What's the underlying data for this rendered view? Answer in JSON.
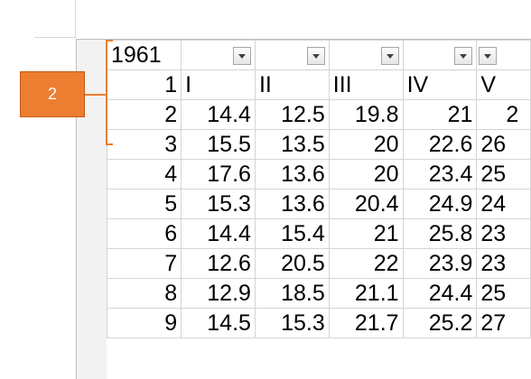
{
  "colors": {
    "accent": "#ed7d31",
    "gridline": "#d4d4d4",
    "header_shade": "#f2f2f2"
  },
  "callout": {
    "label": "2"
  },
  "header_row": {
    "first_cell": "1961"
  },
  "rows": [
    {
      "num": "1",
      "cells": [
        "I",
        "II",
        "III",
        "IV",
        "V"
      ]
    },
    {
      "num": "2",
      "cells": [
        "14.4",
        "12.5",
        "19.8",
        "21",
        "2"
      ]
    },
    {
      "num": "3",
      "cells": [
        "15.5",
        "13.5",
        "20",
        "22.6",
        "26"
      ]
    },
    {
      "num": "4",
      "cells": [
        "17.6",
        "13.6",
        "20",
        "23.4",
        "25"
      ]
    },
    {
      "num": "5",
      "cells": [
        "15.3",
        "13.6",
        "20.4",
        "24.9",
        "24"
      ]
    },
    {
      "num": "6",
      "cells": [
        "14.4",
        "15.4",
        "21",
        "25.8",
        "23"
      ]
    },
    {
      "num": "7",
      "cells": [
        "12.6",
        "20.5",
        "22",
        "23.9",
        "23"
      ]
    },
    {
      "num": "8",
      "cells": [
        "12.9",
        "18.5",
        "21.1",
        "24.4",
        "25"
      ]
    },
    {
      "num": "9",
      "cells": [
        "14.5",
        "15.3",
        "21.7",
        "25.2",
        "27"
      ]
    }
  ]
}
